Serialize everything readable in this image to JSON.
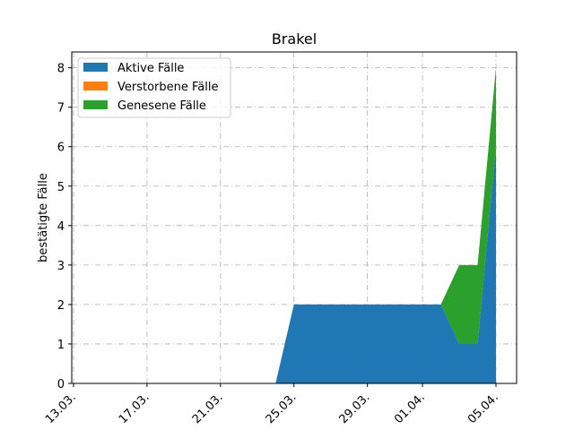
{
  "chart_data": {
    "type": "area",
    "stacked": true,
    "title": "Brakel",
    "xlabel": "",
    "ylabel": "bestätigte Fälle",
    "x": [
      "13.03.",
      "14.03.",
      "15.03.",
      "16.03.",
      "17.03.",
      "18.03.",
      "19.03.",
      "20.03.",
      "21.03.",
      "22.03.",
      "23.03.",
      "24.03.",
      "25.03.",
      "26.03.",
      "27.03.",
      "28.03.",
      "29.03.",
      "30.03.",
      "31.03.",
      "01.04.",
      "02.04.",
      "03.04.",
      "04.04.",
      "05.04."
    ],
    "x_ticks": [
      "13.03.",
      "17.03.",
      "21.03.",
      "25.03.",
      "29.03.",
      "01.04.",
      "05.04."
    ],
    "ylim": [
      0,
      8.4
    ],
    "y_ticks": [
      0,
      1,
      2,
      3,
      4,
      5,
      6,
      7,
      8
    ],
    "grid": true,
    "legend_position": "top-left",
    "series": [
      {
        "name": "Aktive Fälle",
        "color": "#1f77b4",
        "values": [
          0,
          0,
          0,
          0,
          0,
          0,
          0,
          0,
          0,
          0,
          0,
          0,
          2,
          2,
          2,
          2,
          2,
          2,
          2,
          2,
          2,
          1,
          1,
          6
        ]
      },
      {
        "name": "Verstorbene Fälle",
        "color": "#ff7f0e",
        "values": [
          0,
          0,
          0,
          0,
          0,
          0,
          0,
          0,
          0,
          0,
          0,
          0,
          0,
          0,
          0,
          0,
          0,
          0,
          0,
          0,
          0,
          0,
          0,
          0
        ]
      },
      {
        "name": "Genesene Fälle",
        "color": "#2ca02c",
        "values": [
          0,
          0,
          0,
          0,
          0,
          0,
          0,
          0,
          0,
          0,
          0,
          0,
          0,
          0,
          0,
          0,
          0,
          0,
          0,
          0,
          0,
          2,
          2,
          2
        ]
      }
    ]
  }
}
